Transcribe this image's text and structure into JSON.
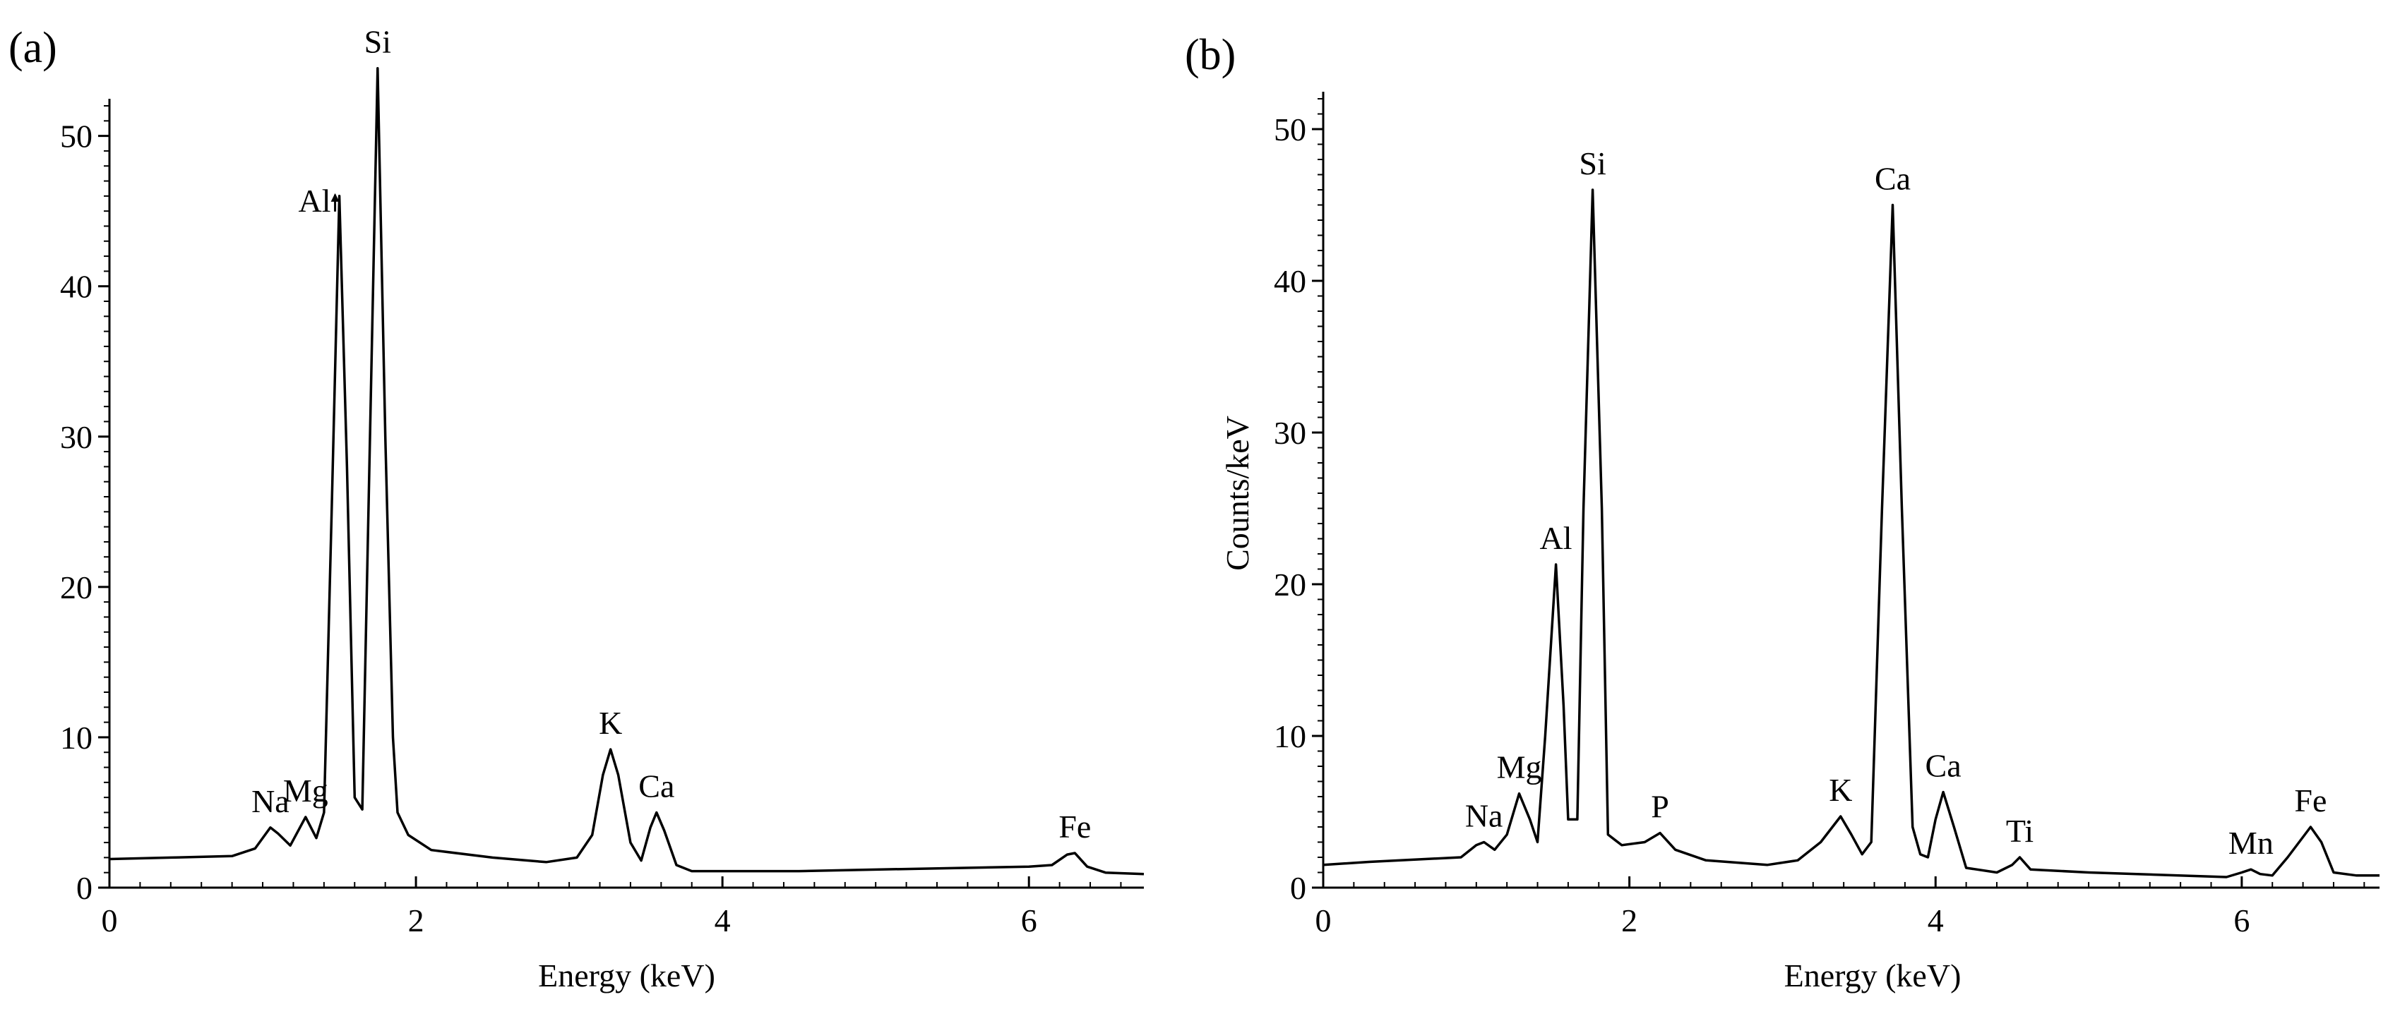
{
  "chart_data": [
    {
      "type": "line",
      "panel_label": "(a)",
      "title": "",
      "xlabel": "Energy  (keV)",
      "ylabel": "",
      "xlim": [
        0,
        6.75
      ],
      "ylim": [
        0,
        52
      ],
      "x_ticks": [
        0,
        2,
        4,
        6
      ],
      "x_tick_labels": [
        "0",
        "2",
        "4",
        "6"
      ],
      "y_ticks": [
        0,
        10,
        20,
        30,
        40,
        50
      ],
      "y_tick_labels": [
        "0",
        "10",
        "20",
        "30",
        "40",
        "50"
      ],
      "grid": false,
      "series": [
        {
          "points": [
            [
              0,
              1.9
            ],
            [
              0.4,
              2.0
            ],
            [
              0.8,
              2.1
            ],
            [
              0.95,
              2.6
            ],
            [
              1.05,
              4.0
            ],
            [
              1.1,
              3.6
            ],
            [
              1.18,
              2.8
            ],
            [
              1.28,
              4.7
            ],
            [
              1.35,
              3.3
            ],
            [
              1.4,
              5.0
            ],
            [
              1.45,
              25.0
            ],
            [
              1.5,
              46.0
            ],
            [
              1.55,
              28.0
            ],
            [
              1.6,
              6.0
            ],
            [
              1.65,
              5.2
            ],
            [
              1.7,
              30.0
            ],
            [
              1.75,
              54.5
            ],
            [
              1.8,
              30.0
            ],
            [
              1.85,
              10.0
            ],
            [
              1.88,
              5.0
            ],
            [
              1.95,
              3.5
            ],
            [
              2.1,
              2.5
            ],
            [
              2.5,
              2.0
            ],
            [
              2.85,
              1.7
            ],
            [
              3.05,
              2.0
            ],
            [
              3.15,
              3.5
            ],
            [
              3.22,
              7.5
            ],
            [
              3.27,
              9.2
            ],
            [
              3.32,
              7.5
            ],
            [
              3.4,
              3.0
            ],
            [
              3.47,
              1.8
            ],
            [
              3.53,
              4.0
            ],
            [
              3.57,
              5.0
            ],
            [
              3.62,
              3.8
            ],
            [
              3.7,
              1.5
            ],
            [
              3.8,
              1.1
            ],
            [
              4.5,
              1.1
            ],
            [
              5.0,
              1.2
            ],
            [
              6.0,
              1.4
            ],
            [
              6.15,
              1.5
            ],
            [
              6.25,
              2.2
            ],
            [
              6.3,
              2.3
            ],
            [
              6.38,
              1.4
            ],
            [
              6.5,
              1.0
            ],
            [
              6.75,
              0.9
            ]
          ]
        }
      ],
      "annotations": [
        {
          "text": "Na",
          "x": 1.05,
          "y": 4.0
        },
        {
          "text": "Mg",
          "x": 1.28,
          "y": 4.7
        },
        {
          "text": "Al",
          "x": 1.5,
          "y": 46.0
        },
        {
          "text": "Si",
          "x": 1.75,
          "y": 54.5
        },
        {
          "text": "K",
          "x": 3.27,
          "y": 9.2
        },
        {
          "text": "Ca",
          "x": 3.57,
          "y": 5.0
        },
        {
          "text": "Fe",
          "x": 6.3,
          "y": 2.3
        }
      ]
    },
    {
      "type": "line",
      "panel_label": "(b)",
      "title": "",
      "xlabel": "Energy  (keV)",
      "ylabel": "Counts/keV",
      "xlim": [
        0,
        6.9
      ],
      "ylim": [
        0,
        52
      ],
      "x_ticks": [
        0,
        2,
        4,
        6
      ],
      "x_tick_labels": [
        "0",
        "2",
        "4",
        "6"
      ],
      "y_ticks": [
        0,
        10,
        20,
        30,
        40,
        50
      ],
      "y_tick_labels": [
        "0",
        "10",
        "20",
        "30",
        "40",
        "50"
      ],
      "grid": false,
      "series": [
        {
          "points": [
            [
              0,
              1.5
            ],
            [
              0.3,
              1.7
            ],
            [
              0.9,
              2.0
            ],
            [
              1.0,
              2.8
            ],
            [
              1.05,
              3.0
            ],
            [
              1.12,
              2.5
            ],
            [
              1.2,
              3.5
            ],
            [
              1.28,
              6.2
            ],
            [
              1.35,
              4.5
            ],
            [
              1.4,
              3.0
            ],
            [
              1.45,
              10.0
            ],
            [
              1.52,
              21.3
            ],
            [
              1.57,
              12.0
            ],
            [
              1.6,
              4.5
            ],
            [
              1.66,
              4.5
            ],
            [
              1.7,
              25.0
            ],
            [
              1.76,
              46.0
            ],
            [
              1.82,
              25.0
            ],
            [
              1.86,
              3.5
            ],
            [
              1.95,
              2.8
            ],
            [
              2.1,
              3.0
            ],
            [
              2.2,
              3.6
            ],
            [
              2.3,
              2.5
            ],
            [
              2.5,
              1.8
            ],
            [
              2.9,
              1.5
            ],
            [
              3.1,
              1.8
            ],
            [
              3.25,
              3.0
            ],
            [
              3.38,
              4.7
            ],
            [
              3.45,
              3.5
            ],
            [
              3.52,
              2.2
            ],
            [
              3.58,
              3.0
            ],
            [
              3.65,
              25.0
            ],
            [
              3.72,
              45.0
            ],
            [
              3.78,
              25.0
            ],
            [
              3.85,
              4.0
            ],
            [
              3.9,
              2.2
            ],
            [
              3.95,
              2.0
            ],
            [
              4.0,
              4.5
            ],
            [
              4.05,
              6.3
            ],
            [
              4.12,
              4.0
            ],
            [
              4.2,
              1.3
            ],
            [
              4.4,
              1.0
            ],
            [
              4.5,
              1.5
            ],
            [
              4.55,
              2.0
            ],
            [
              4.62,
              1.2
            ],
            [
              5.0,
              1.0
            ],
            [
              5.9,
              0.7
            ],
            [
              6.0,
              1.0
            ],
            [
              6.06,
              1.2
            ],
            [
              6.12,
              0.9
            ],
            [
              6.2,
              0.8
            ],
            [
              6.3,
              2.0
            ],
            [
              6.45,
              4.0
            ],
            [
              6.52,
              3.0
            ],
            [
              6.6,
              1.0
            ],
            [
              6.75,
              0.8
            ],
            [
              6.9,
              0.8
            ]
          ]
        }
      ],
      "annotations": [
        {
          "text": "Na",
          "x": 1.05,
          "y": 3.0
        },
        {
          "text": "Mg",
          "x": 1.28,
          "y": 6.2
        },
        {
          "text": "Al",
          "x": 1.52,
          "y": 21.3
        },
        {
          "text": "Si",
          "x": 1.76,
          "y": 46.0
        },
        {
          "text": "P",
          "x": 2.2,
          "y": 3.6
        },
        {
          "text": "K",
          "x": 3.38,
          "y": 4.7
        },
        {
          "text": "Ca",
          "x": 3.72,
          "y": 45.0
        },
        {
          "text": "Ca",
          "x": 4.05,
          "y": 6.3
        },
        {
          "text": "Ti",
          "x": 4.55,
          "y": 2.0
        },
        {
          "text": "Mn",
          "x": 6.06,
          "y": 1.2
        },
        {
          "text": "Fe",
          "x": 6.45,
          "y": 4.0
        }
      ]
    }
  ]
}
